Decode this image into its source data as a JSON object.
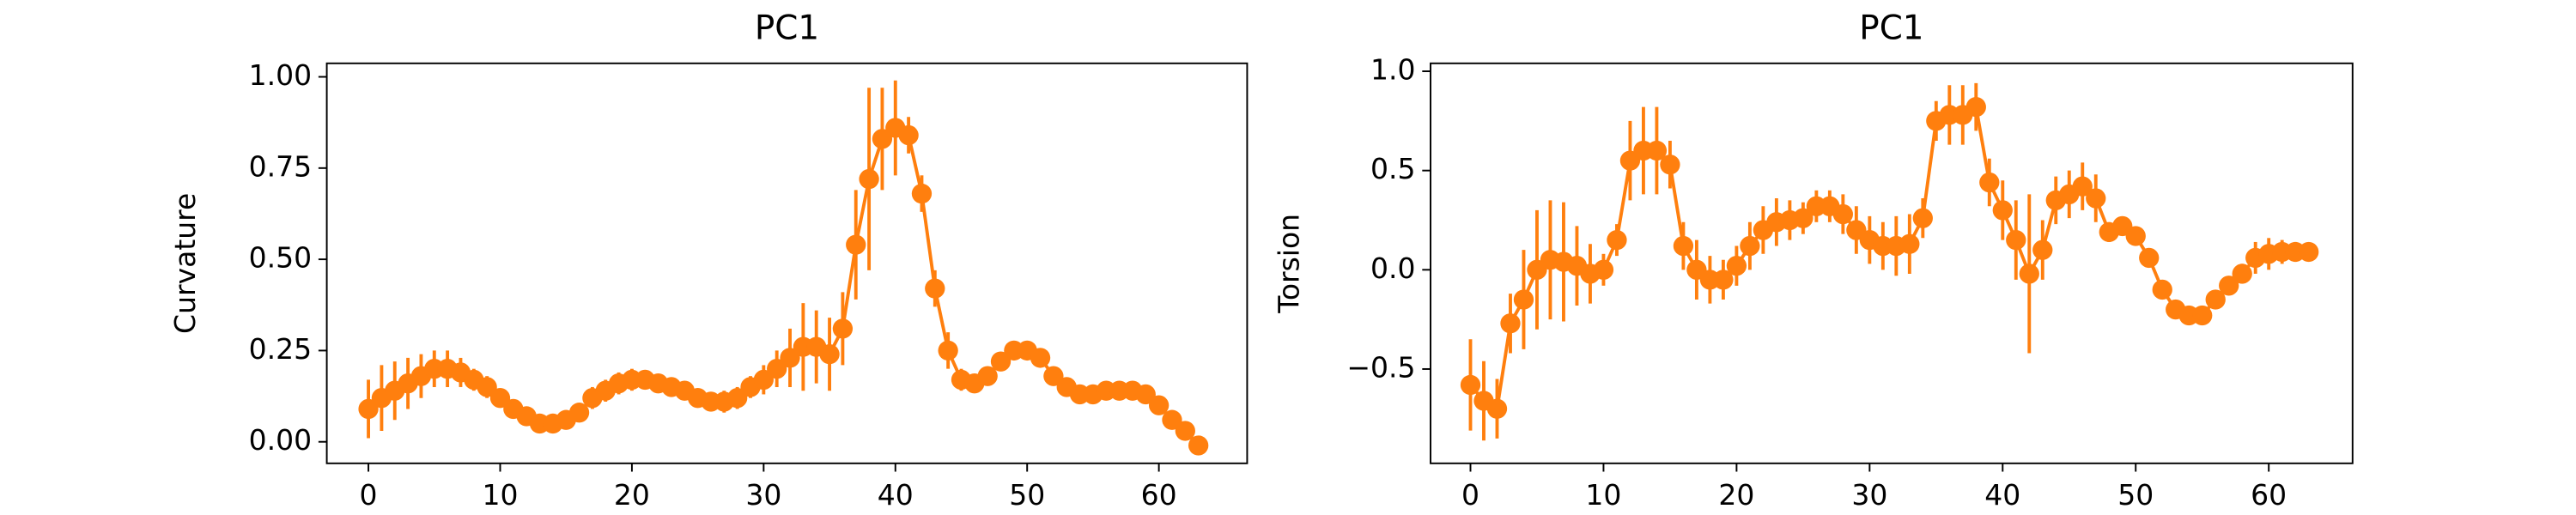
{
  "chart_data": [
    {
      "type": "errorbar-line",
      "title": "PC1",
      "ylabel": "Curvature",
      "color": "#ff7f0e",
      "x": [
        0,
        1,
        2,
        3,
        4,
        5,
        6,
        7,
        8,
        9,
        10,
        11,
        12,
        13,
        14,
        15,
        16,
        17,
        18,
        19,
        20,
        21,
        22,
        23,
        24,
        25,
        26,
        27,
        28,
        29,
        30,
        31,
        32,
        33,
        34,
        35,
        36,
        37,
        38,
        39,
        40,
        41,
        42,
        43,
        44,
        45,
        46,
        47,
        48,
        49,
        50,
        51,
        52,
        53,
        54,
        55,
        56,
        57,
        58,
        59,
        60,
        61,
        62,
        63
      ],
      "values": [
        0.09,
        0.12,
        0.14,
        0.16,
        0.18,
        0.2,
        0.2,
        0.19,
        0.17,
        0.15,
        0.12,
        0.09,
        0.07,
        0.05,
        0.05,
        0.06,
        0.08,
        0.12,
        0.14,
        0.16,
        0.17,
        0.17,
        0.16,
        0.15,
        0.14,
        0.12,
        0.11,
        0.11,
        0.12,
        0.15,
        0.17,
        0.2,
        0.23,
        0.26,
        0.26,
        0.24,
        0.31,
        0.54,
        0.72,
        0.83,
        0.86,
        0.84,
        0.68,
        0.42,
        0.25,
        0.17,
        0.16,
        0.18,
        0.22,
        0.25,
        0.25,
        0.23,
        0.18,
        0.15,
        0.13,
        0.13,
        0.14,
        0.14,
        0.14,
        0.13,
        0.1,
        0.06,
        0.03,
        -0.01
      ],
      "errors": [
        0.08,
        0.09,
        0.08,
        0.07,
        0.06,
        0.05,
        0.05,
        0.04,
        0.03,
        0.03,
        0.02,
        0.02,
        0.02,
        0.02,
        0.02,
        0.02,
        0.02,
        0.03,
        0.03,
        0.03,
        0.03,
        0.02,
        0.02,
        0.02,
        0.02,
        0.02,
        0.02,
        0.03,
        0.03,
        0.03,
        0.04,
        0.05,
        0.08,
        0.12,
        0.1,
        0.1,
        0.1,
        0.15,
        0.25,
        0.14,
        0.13,
        0.05,
        0.05,
        0.05,
        0.05,
        0.03,
        0.02,
        0.02,
        0.02,
        0.02,
        0.02,
        0.02,
        0.02,
        0.02,
        0.02,
        0.02,
        0.02,
        0.02,
        0.02,
        0.02,
        0.02,
        0.02,
        0.02,
        0.02
      ],
      "xlim": [
        -3.16,
        66.7
      ],
      "ylim": [
        -0.059,
        1.037
      ],
      "xticks": [
        0,
        10,
        20,
        30,
        40,
        50,
        60
      ],
      "yticks": [
        {
          "value": 0,
          "label": "0.00"
        },
        {
          "value": 0.25,
          "label": "0.25"
        },
        {
          "value": 0.5,
          "label": "0.50"
        },
        {
          "value": 0.75,
          "label": "0.75"
        },
        {
          "value": 1,
          "label": "1.00"
        }
      ]
    },
    {
      "type": "errorbar-line",
      "title": "PC1",
      "ylabel": "Torsion",
      "color": "#ff7f0e",
      "x": [
        0,
        1,
        2,
        3,
        4,
        5,
        6,
        7,
        8,
        9,
        10,
        11,
        12,
        13,
        14,
        15,
        16,
        17,
        18,
        19,
        20,
        21,
        22,
        23,
        24,
        25,
        26,
        27,
        28,
        29,
        30,
        31,
        32,
        33,
        34,
        35,
        36,
        37,
        38,
        39,
        40,
        41,
        42,
        43,
        44,
        45,
        46,
        47,
        48,
        49,
        50,
        51,
        52,
        53,
        54,
        55,
        56,
        57,
        58,
        59,
        60,
        61,
        62,
        63
      ],
      "values": [
        -0.58,
        -0.66,
        -0.7,
        -0.27,
        -0.15,
        0.0,
        0.05,
        0.04,
        0.02,
        -0.02,
        0.0,
        0.15,
        0.55,
        0.6,
        0.6,
        0.53,
        0.12,
        0.0,
        -0.05,
        -0.05,
        0.02,
        0.12,
        0.2,
        0.24,
        0.25,
        0.26,
        0.32,
        0.32,
        0.28,
        0.2,
        0.15,
        0.12,
        0.12,
        0.13,
        0.26,
        0.75,
        0.78,
        0.78,
        0.82,
        0.44,
        0.3,
        0.15,
        -0.02,
        0.1,
        0.35,
        0.38,
        0.42,
        0.36,
        0.19,
        0.22,
        0.17,
        0.06,
        -0.1,
        -0.2,
        -0.23,
        -0.23,
        -0.15,
        -0.08,
        -0.02,
        0.06,
        0.08,
        0.09,
        0.09,
        0.09
      ],
      "errors": [
        0.23,
        0.2,
        0.15,
        0.15,
        0.25,
        0.3,
        0.3,
        0.3,
        0.2,
        0.15,
        0.08,
        0.08,
        0.2,
        0.22,
        0.22,
        0.12,
        0.12,
        0.15,
        0.12,
        0.1,
        0.1,
        0.12,
        0.12,
        0.12,
        0.1,
        0.08,
        0.08,
        0.08,
        0.1,
        0.12,
        0.12,
        0.12,
        0.15,
        0.15,
        0.1,
        0.1,
        0.15,
        0.15,
        0.12,
        0.12,
        0.15,
        0.2,
        0.4,
        0.15,
        0.12,
        0.12,
        0.12,
        0.12,
        0.05,
        0.03,
        0.03,
        0.03,
        0.03,
        0.03,
        0.03,
        0.03,
        0.03,
        0.03,
        0.05,
        0.08,
        0.08,
        0.06,
        0.05,
        0.04
      ],
      "xlim": [
        -3.0,
        66.3
      ],
      "ylim": [
        -0.975,
        1.04
      ],
      "xticks": [
        0,
        10,
        20,
        30,
        40,
        50,
        60
      ],
      "yticks": [
        {
          "value": -0.5,
          "label": "−0.5"
        },
        {
          "value": 0,
          "label": "0.0"
        },
        {
          "value": 0.5,
          "label": "0.5"
        },
        {
          "value": 1,
          "label": "1.0"
        }
      ]
    }
  ]
}
